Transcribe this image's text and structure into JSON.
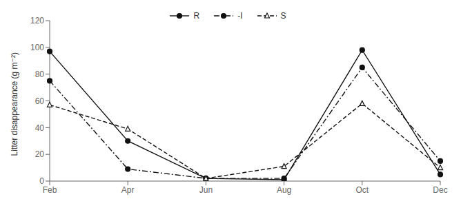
{
  "chart_data": {
    "type": "line",
    "categories": [
      "Feb",
      "Apr",
      "Jun",
      "Aug",
      "Oct",
      "Dec"
    ],
    "series": [
      {
        "name": "R",
        "color": "#111111",
        "values": [
          97,
          30,
          2,
          1,
          98,
          5
        ],
        "line_style": "solid",
        "marker": "circle"
      },
      {
        "name": "-I",
        "color": "#111111",
        "values": [
          75,
          9,
          2,
          2,
          85,
          15
        ],
        "line_style": "dashdot",
        "marker": "circle"
      },
      {
        "name": "S",
        "color": "#111111",
        "values": [
          57,
          39,
          2,
          11,
          58,
          10
        ],
        "line_style": "dashed",
        "marker": "triangle-open"
      }
    ],
    "ylabel": "Litter disappearance (g m⁻²)",
    "ylim": [
      0,
      120
    ],
    "yticks": [
      0,
      20,
      40,
      60,
      80,
      100,
      120
    ],
    "grid": false,
    "legend": "top"
  }
}
